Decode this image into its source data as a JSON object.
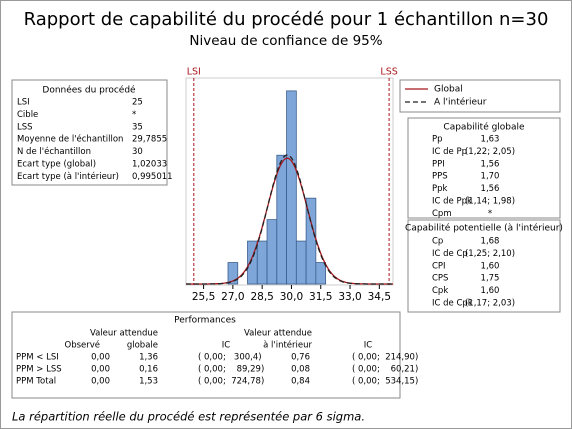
{
  "title": "Rapport de capabilité du procédé pour 1 échantillon n=30",
  "subtitle": "Niveau de confiance de 95%",
  "chart_data": {
    "type": "histogram",
    "bins": [
      26.75,
      27.25,
      27.75,
      28.25,
      28.75,
      29.25,
      29.75,
      30.25,
      30.75,
      31.25,
      31.75
    ],
    "counts": [
      1,
      0,
      2,
      2,
      3,
      6,
      9,
      2,
      4,
      1
    ],
    "color": "#7ea6d8",
    "xlim": [
      24.6,
      35.2
    ],
    "ylim": [
      0,
      9.6
    ],
    "xticks": [
      {
        "value": 25.5,
        "label": "25,5"
      },
      {
        "value": 27,
        "label": "27,0"
      },
      {
        "value": 28.5,
        "label": "28,5"
      },
      {
        "value": 30,
        "label": "30,0"
      },
      {
        "value": 31.5,
        "label": "31,5"
      },
      {
        "value": 33,
        "label": "33,0"
      },
      {
        "value": 34.5,
        "label": "34,5"
      }
    ],
    "spec_limits": [
      {
        "label": "LSI",
        "value": 25
      },
      {
        "label": "LSS",
        "value": 35
      }
    ],
    "series": [
      {
        "name": "Global",
        "color": "#a8161c",
        "mean": 29.7855,
        "sd": 1.02033,
        "dash": false
      },
      {
        "name": "A l'intérieur",
        "color": "#222222",
        "mean": 29.7855,
        "sd": 0.995011,
        "dash": true
      }
    ],
    "n": 30
  },
  "process_data": {
    "title": "Données du procédé",
    "rows": [
      [
        "LSI",
        "25"
      ],
      [
        "Cible",
        "*"
      ],
      [
        "LSS",
        "35"
      ],
      [
        "Moyenne de l'échantillon",
        "29,7855"
      ],
      [
        "N de l'échantillon",
        "30"
      ],
      [
        "Ecart type (global)",
        "1,02033"
      ],
      [
        "Ecart type (à l'intérieur)",
        "0,995011"
      ]
    ]
  },
  "overall": {
    "title": "Capabilité globale",
    "rows": [
      [
        "Pp",
        "1,63"
      ],
      [
        "IC de Pp",
        "(1,22; 2,05)"
      ],
      [
        "PPI",
        "1,56"
      ],
      [
        "PPS",
        "1,70"
      ],
      [
        "Ppk",
        "1,56"
      ],
      [
        "IC de Ppk",
        "(1,14; 1,98)"
      ],
      [
        "Cpm",
        "*"
      ]
    ]
  },
  "potential": {
    "title": "Capabilité potentielle (à l'intérieur)",
    "rows": [
      [
        "Cp",
        "1,68"
      ],
      [
        "IC de Cp",
        "(1,25; 2,10)"
      ],
      [
        "CPI",
        "1,60"
      ],
      [
        "CPS",
        "1,75"
      ],
      [
        "Cpk",
        "1,60"
      ],
      [
        "IC de Cpk",
        "(1,17; 2,03)"
      ]
    ]
  },
  "performance": {
    "title": "Performances",
    "headers": [
      [
        "Observé"
      ],
      [
        "Valeur attendue",
        "globale"
      ],
      [
        "IC"
      ],
      [
        "Valeur attendue",
        "à l'intérieur"
      ],
      [
        "IC"
      ]
    ],
    "rows": [
      [
        "PPM < LSI",
        "0,00",
        "1,36",
        "( 0,00;   300,4)",
        "0,76",
        "( 0,00;  214,90)"
      ],
      [
        "PPM > LSS",
        "0,00",
        "0,16",
        "( 0,00;    89,29)",
        "0,08",
        "( 0,00;    60,21)"
      ],
      [
        "PPM Total",
        "0,00",
        "1,53",
        "( 0,00;  724,78)",
        "0,84",
        "( 0,00;  534,15)"
      ]
    ]
  },
  "footnote": "La répartition réelle du procédé est représentée par 6 sigma."
}
